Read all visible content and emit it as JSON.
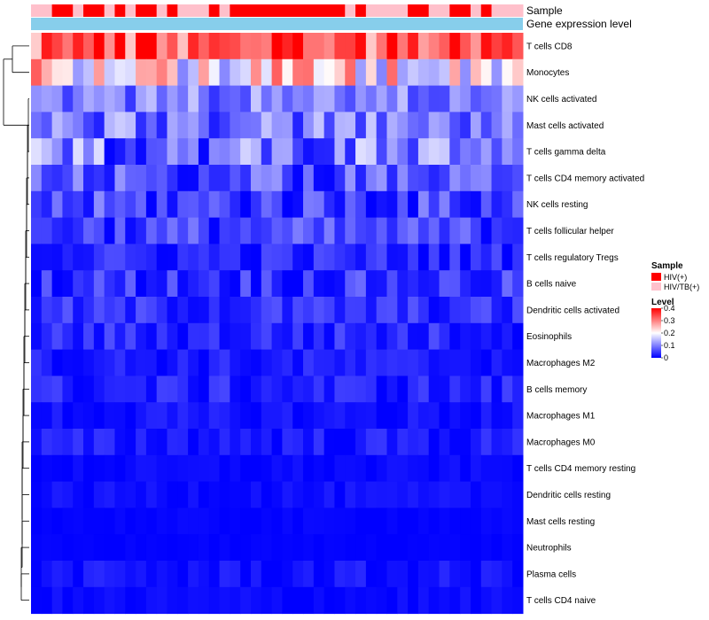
{
  "chart_data": {
    "type": "heatmap",
    "title": "",
    "column_annotations": [
      {
        "name": "Sample",
        "label": "Sample",
        "values": [
          "HIV/TB(+)",
          "HIV/TB(+)",
          "HIV(+)",
          "HIV(+)",
          "HIV/TB(+)",
          "HIV(+)",
          "HIV(+)",
          "HIV/TB(+)",
          "HIV(+)",
          "HIV/TB(+)",
          "HIV(+)",
          "HIV(+)",
          "HIV/TB(+)",
          "HIV(+)",
          "HIV/TB(+)",
          "HIV/TB(+)",
          "HIV/TB(+)",
          "HIV(+)",
          "HIV/TB(+)",
          "HIV(+)",
          "HIV(+)",
          "HIV(+)",
          "HIV(+)",
          "HIV(+)",
          "HIV(+)",
          "HIV(+)",
          "HIV(+)",
          "HIV(+)",
          "HIV(+)",
          "HIV(+)",
          "HIV/TB(+)",
          "HIV(+)",
          "HIV/TB(+)",
          "HIV/TB(+)",
          "HIV/TB(+)",
          "HIV/TB(+)",
          "HIV(+)",
          "HIV(+)",
          "HIV/TB(+)",
          "HIV/TB(+)",
          "HIV(+)",
          "HIV(+)",
          "HIV/TB(+)",
          "HIV(+)",
          "HIV/TB(+)",
          "HIV/TB(+)",
          "HIV/TB(+)"
        ]
      },
      {
        "name": "Gene expression level",
        "label": "Gene expression level",
        "color": "#87CEEB"
      }
    ],
    "sample_colors": {
      "HIV(+)": "#FF0000",
      "HIV/TB(+)": "#FFC0CB"
    },
    "rows": [
      "T cells CD8",
      "Monocytes",
      "NK cells activated",
      "Mast cells activated",
      "T cells gamma delta",
      "T cells CD4 memory activated",
      "NK cells resting",
      "T cells follicular helper",
      "T cells regulatory  Tregs",
      "B cells naive",
      "Dendritic cells activated",
      "Eosinophils",
      "Macrophages M2",
      "B cells memory",
      "Macrophages M1",
      "Macrophages M0",
      "T cells CD4 memory resting",
      "Dendritic cells resting",
      "Mast cells resting",
      "Neutrophils",
      "Plasma cells",
      "T cells CD4 naive"
    ],
    "n_columns": 47,
    "row_base_values": [
      0.33,
      0.22,
      0.1,
      0.09,
      0.09,
      0.06,
      0.05,
      0.05,
      0.03,
      0.04,
      0.035,
      0.03,
      0.02,
      0.025,
      0.012,
      0.02,
      0.006,
      0.01,
      0.003,
      0.002,
      0.012,
      0.006
    ],
    "row_spread": [
      0.09,
      0.12,
      0.06,
      0.07,
      0.09,
      0.06,
      0.06,
      0.05,
      0.035,
      0.045,
      0.035,
      0.035,
      0.025,
      0.03,
      0.02,
      0.025,
      0.01,
      0.012,
      0.005,
      0.003,
      0.02,
      0.012
    ],
    "color_scale": {
      "min": 0,
      "max": 0.4,
      "colors": [
        "#0000FF",
        "#FFFFFF",
        "#FF0000"
      ],
      "mid": 0.2
    },
    "legends": {
      "sample": {
        "title": "Sample",
        "entries": [
          "HIV(+)",
          "HIV/TB(+)"
        ]
      },
      "level": {
        "title": "Level",
        "ticks": [
          "0.4",
          "0.3",
          "0.2",
          "0.1",
          "0"
        ],
        "tick_values": [
          0.4,
          0.3,
          0.2,
          0.1,
          0
        ]
      }
    },
    "row_dendrogram": "hierarchical clustering of rows"
  }
}
